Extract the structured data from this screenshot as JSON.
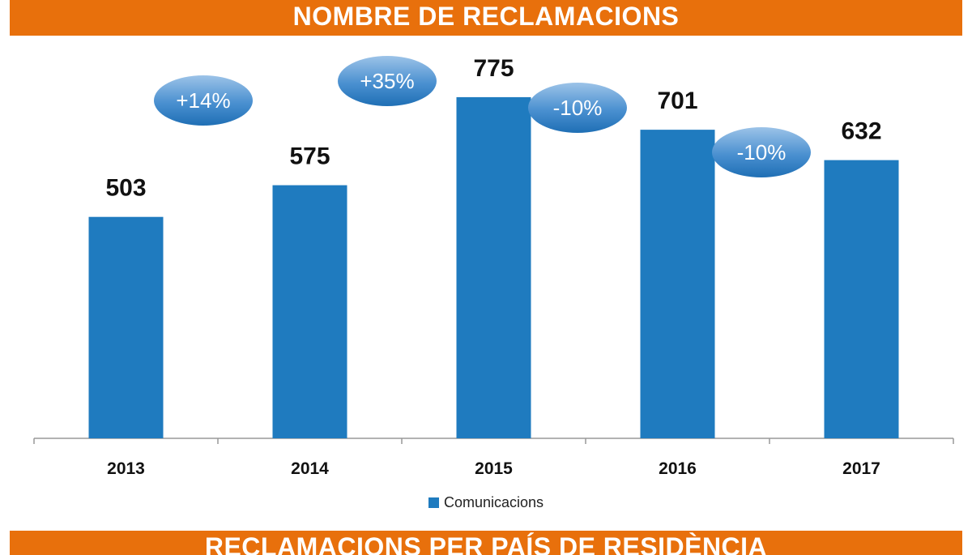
{
  "title": "NOMBRE DE RECLAMACIONS",
  "next_section_title": "RECLAMACIONS PER PAÍS DE RESIDÈNCIA",
  "chart_data": {
    "type": "bar",
    "title": "NOMBRE DE RECLAMACIONS",
    "categories": [
      "2013",
      "2014",
      "2015",
      "2016",
      "2017"
    ],
    "series": [
      {
        "name": "Comunicacions",
        "values": [
          503,
          575,
          775,
          701,
          632
        ],
        "color": "#1f7bbf"
      }
    ],
    "data_labels": [
      "503",
      "575",
      "775",
      "701",
      "632"
    ],
    "change_annotations": [
      "+14%",
      "+35%",
      "-10%",
      "-10%"
    ],
    "ylim": [
      0,
      900
    ],
    "grid": false,
    "legend": "bottom",
    "colors": {
      "bar": "#1f7bbf",
      "band": "#e8700c",
      "bubble": "#3a86c8"
    }
  }
}
